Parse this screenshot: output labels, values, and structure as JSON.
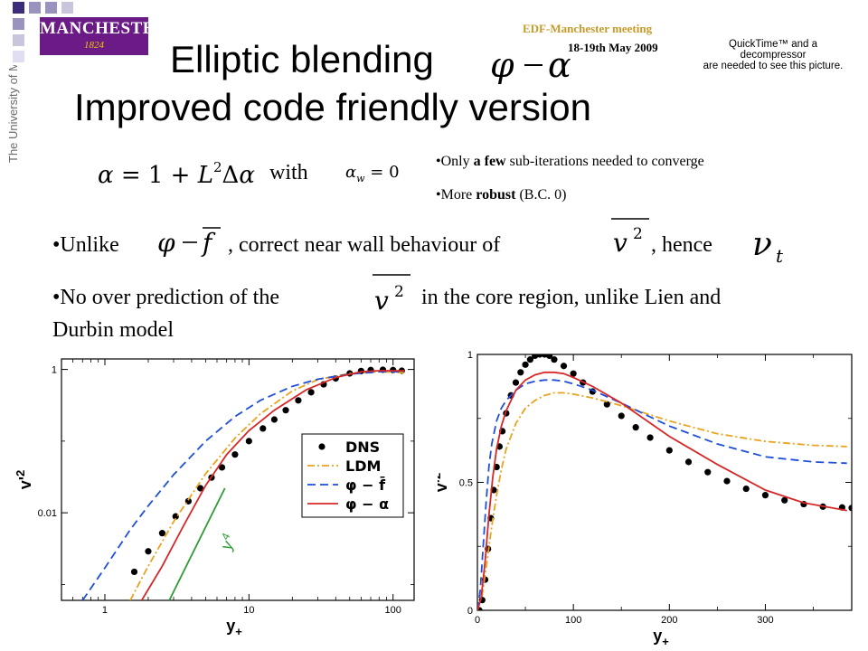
{
  "header": {
    "logo": {
      "name": "MANCHESTER",
      "year": "1824"
    },
    "university_text": "The University of Manchester",
    "meeting": "EDF-Manchester meeting",
    "date": "18-19th May 2009",
    "quicktime_notice": [
      "QuickTime™ and a",
      "decompressor",
      "are needed to see this picture."
    ]
  },
  "title": {
    "line1": "Elliptic blending",
    "line2": "Improved code friendly version"
  },
  "equation": {
    "with": "with"
  },
  "notes": [
    {
      "prefix": "•Only ",
      "bold": "a few",
      "suffix": " sub-iterations needed to converge"
    },
    {
      "prefix": "•More ",
      "bold": "robust",
      "suffix": " (B.C. 0)"
    }
  ],
  "bullets": {
    "b1_unlike": "•Unlike",
    "b1_mid": ", correct near wall behaviour of",
    "b1_hence": ", hence",
    "b2_start": "•No over prediction of the",
    "b2_end": "in the core region, unlike Lien and",
    "b2_line2": "Durbin model"
  },
  "chart_data": [
    {
      "type": "line",
      "xscale": "log",
      "yscale": "log",
      "xlabel": "y+",
      "ylabel": "v'2",
      "xlim": [
        0.5,
        140
      ],
      "ylim": [
        0.0006,
        1.4
      ],
      "xticks": [
        "1",
        "10",
        "100"
      ],
      "yticks": [
        "0.01",
        "1"
      ],
      "legend_position": "center-right",
      "annotation": "y",
      "annotation_superscript": "4",
      "series": [
        {
          "name": "DNS",
          "style": "dots",
          "color": "#000000",
          "x": [
            1.6,
            2.0,
            2.5,
            3.1,
            3.8,
            4.6,
            5.5,
            6.5,
            8,
            10,
            12.5,
            15,
            18,
            22,
            27,
            33,
            40,
            50,
            60,
            70,
            85,
            100,
            115
          ],
          "y": [
            0.0015,
            0.0029,
            0.0052,
            0.0089,
            0.0145,
            0.022,
            0.031,
            0.043,
            0.065,
            0.1,
            0.15,
            0.2,
            0.27,
            0.37,
            0.48,
            0.62,
            0.75,
            0.88,
            0.95,
            0.98,
            0.99,
            0.98,
            0.96
          ]
        },
        {
          "name": "LDM",
          "style": "dash-dot",
          "color": "#e8a31f",
          "x": [
            1.5,
            2,
            3,
            5,
            8,
            12,
            20,
            30,
            50,
            80,
            120
          ],
          "y": [
            0.0006,
            0.0018,
            0.0075,
            0.035,
            0.11,
            0.24,
            0.5,
            0.72,
            0.88,
            0.93,
            0.9
          ]
        },
        {
          "name": "φ − f̄",
          "style": "dashed",
          "color": "#1f4ed8",
          "x": [
            0.7,
            1,
            1.5,
            2,
            3,
            5,
            8,
            12,
            20,
            30,
            50,
            80,
            120
          ],
          "y": [
            0.0006,
            0.0017,
            0.0058,
            0.0125,
            0.034,
            0.1,
            0.22,
            0.37,
            0.58,
            0.73,
            0.86,
            0.93,
            0.93
          ]
        },
        {
          "name": "φ − α",
          "style": "solid",
          "color": "#d62728",
          "x": [
            1.8,
            2.5,
            3.5,
            5,
            7,
            10,
            15,
            25,
            40,
            60,
            80,
            120
          ],
          "y": [
            0.0006,
            0.0018,
            0.0065,
            0.024,
            0.065,
            0.14,
            0.27,
            0.52,
            0.77,
            0.93,
            0.96,
            0.96
          ]
        },
        {
          "name": "",
          "style": "solid",
          "color": "#2e9b34",
          "x": [
            2.8,
            6.8
          ],
          "y": [
            0.0006,
            0.022
          ]
        }
      ]
    },
    {
      "type": "line",
      "xlabel": "y+",
      "ylabel": "v'2",
      "xlim": [
        0,
        390
      ],
      "ylim": [
        0,
        1.0
      ],
      "xticks": [
        "0",
        "100",
        "200",
        "300"
      ],
      "yticks": [
        "0",
        "0.5",
        "1"
      ],
      "series": [
        {
          "name": "DNS",
          "style": "dots",
          "color": "#000000",
          "x": [
            2,
            5,
            8,
            11,
            14,
            17,
            20,
            23,
            26,
            30,
            35,
            40,
            45,
            50,
            55,
            60,
            65,
            70,
            75,
            80,
            90,
            100,
            110,
            120,
            135,
            150,
            165,
            180,
            200,
            220,
            240,
            260,
            280,
            300,
            320,
            340,
            360,
            380,
            390
          ],
          "y": [
            0.0,
            0.04,
            0.12,
            0.24,
            0.36,
            0.47,
            0.56,
            0.64,
            0.7,
            0.77,
            0.84,
            0.89,
            0.93,
            0.96,
            0.98,
            0.995,
            1.0,
            1.0,
            0.995,
            0.98,
            0.955,
            0.925,
            0.89,
            0.855,
            0.805,
            0.76,
            0.715,
            0.675,
            0.625,
            0.58,
            0.54,
            0.505,
            0.475,
            0.45,
            0.43,
            0.415,
            0.405,
            0.402,
            0.4
          ]
        },
        {
          "name": "LDM",
          "style": "dash-dot",
          "color": "#e8a31f",
          "x": [
            0,
            5,
            10,
            15,
            20,
            25,
            30,
            40,
            50,
            60,
            70,
            80,
            90,
            100,
            120,
            150,
            200,
            250,
            300,
            350,
            385
          ],
          "y": [
            0.0,
            0.06,
            0.19,
            0.33,
            0.45,
            0.55,
            0.63,
            0.73,
            0.79,
            0.82,
            0.84,
            0.85,
            0.85,
            0.845,
            0.83,
            0.8,
            0.74,
            0.69,
            0.66,
            0.645,
            0.64
          ]
        },
        {
          "name": "φ − f̄",
          "style": "dashed",
          "color": "#1f4ed8",
          "x": [
            0,
            3,
            6,
            9,
            12,
            15,
            20,
            25,
            30,
            40,
            50,
            60,
            70,
            80,
            90,
            100,
            120,
            150,
            200,
            250,
            300,
            350,
            385
          ],
          "y": [
            0.0,
            0.08,
            0.25,
            0.42,
            0.56,
            0.65,
            0.74,
            0.79,
            0.82,
            0.86,
            0.885,
            0.895,
            0.9,
            0.9,
            0.895,
            0.885,
            0.86,
            0.81,
            0.72,
            0.65,
            0.6,
            0.58,
            0.575
          ]
        },
        {
          "name": "φ − α",
          "style": "solid",
          "color": "#d62728",
          "x": [
            0,
            4,
            8,
            12,
            16,
            20,
            25,
            30,
            40,
            50,
            60,
            70,
            80,
            90,
            100,
            120,
            150,
            200,
            250,
            300,
            340,
            385
          ],
          "y": [
            0.0,
            0.05,
            0.19,
            0.37,
            0.52,
            0.63,
            0.72,
            0.78,
            0.86,
            0.9,
            0.92,
            0.93,
            0.93,
            0.925,
            0.91,
            0.875,
            0.81,
            0.68,
            0.57,
            0.47,
            0.42,
            0.39
          ]
        }
      ]
    }
  ]
}
